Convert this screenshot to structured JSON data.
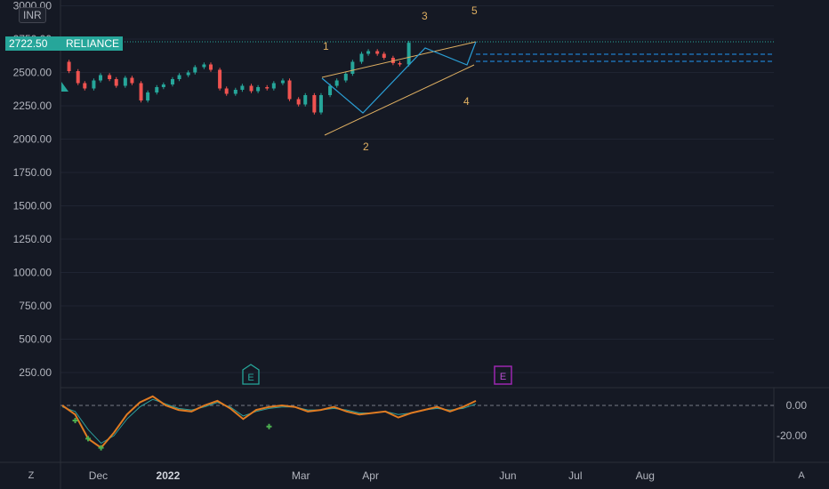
{
  "header": {
    "currency": "INR",
    "symbol": "RELIANCE",
    "last_price": "2722.50"
  },
  "price_axis": {
    "ticks": [
      "3000.00",
      "2750.00",
      "2500.00",
      "2250.00",
      "2000.00",
      "1750.00",
      "1500.00",
      "1250.00",
      "1000.00",
      "750.00",
      "500.00",
      "250.00"
    ]
  },
  "oscillator_axis": {
    "ticks": [
      "0.00",
      "-20.00"
    ]
  },
  "time_axis": {
    "labels": [
      "Dec",
      "2022",
      "Mar",
      "Apr",
      "Jun",
      "Jul",
      "Aug"
    ]
  },
  "buttons": {
    "zoom": "Z",
    "auto": "A"
  },
  "events": {
    "earnings_1": "E",
    "earnings_2": "E"
  },
  "wave_labels": [
    "1",
    "2",
    "3",
    "4",
    "5"
  ],
  "colors": {
    "up": "#26a69a",
    "down": "#ef5350",
    "pattern": "#e0b062",
    "oscillator_fast": "#e07b22",
    "oscillator_slow": "#2a9d9a",
    "earnings_1": "#26a69a",
    "earnings_2": "#9c27b0"
  },
  "chart_data": {
    "type": "candlestick",
    "symbol": "RELIANCE",
    "last_price": 2722.5,
    "y_range": [
      0,
      3000
    ],
    "close_series": [
      {
        "date": "2021-11-15",
        "close": 2580
      },
      {
        "date": "2021-11-18",
        "close": 2510
      },
      {
        "date": "2021-11-22",
        "close": 2420
      },
      {
        "date": "2021-11-25",
        "close": 2380
      },
      {
        "date": "2021-11-29",
        "close": 2440
      },
      {
        "date": "2021-12-02",
        "close": 2480
      },
      {
        "date": "2021-12-06",
        "close": 2450
      },
      {
        "date": "2021-12-09",
        "close": 2400
      },
      {
        "date": "2021-12-13",
        "close": 2460
      },
      {
        "date": "2021-12-16",
        "close": 2420
      },
      {
        "date": "2021-12-20",
        "close": 2290
      },
      {
        "date": "2021-12-23",
        "close": 2350
      },
      {
        "date": "2021-12-27",
        "close": 2390
      },
      {
        "date": "2021-12-30",
        "close": 2410
      },
      {
        "date": "2022-01-03",
        "close": 2450
      },
      {
        "date": "2022-01-06",
        "close": 2480
      },
      {
        "date": "2022-01-10",
        "close": 2500
      },
      {
        "date": "2022-01-13",
        "close": 2540
      },
      {
        "date": "2022-01-17",
        "close": 2560
      },
      {
        "date": "2022-01-20",
        "close": 2520
      },
      {
        "date": "2022-01-24",
        "close": 2380
      },
      {
        "date": "2022-01-27",
        "close": 2340
      },
      {
        "date": "2022-01-31",
        "close": 2370
      },
      {
        "date": "2022-02-03",
        "close": 2400
      },
      {
        "date": "2022-02-07",
        "close": 2360
      },
      {
        "date": "2022-02-10",
        "close": 2390
      },
      {
        "date": "2022-02-14",
        "close": 2380
      },
      {
        "date": "2022-02-17",
        "close": 2420
      },
      {
        "date": "2022-02-21",
        "close": 2440
      },
      {
        "date": "2022-02-24",
        "close": 2300
      },
      {
        "date": "2022-02-28",
        "close": 2260
      },
      {
        "date": "2022-03-03",
        "close": 2330
      },
      {
        "date": "2022-03-07",
        "close": 2200
      },
      {
        "date": "2022-03-10",
        "close": 2330
      },
      {
        "date": "2022-03-14",
        "close": 2400
      },
      {
        "date": "2022-03-17",
        "close": 2440
      },
      {
        "date": "2022-03-21",
        "close": 2490
      },
      {
        "date": "2022-03-24",
        "close": 2580
      },
      {
        "date": "2022-03-28",
        "close": 2640
      },
      {
        "date": "2022-03-31",
        "close": 2660
      },
      {
        "date": "2022-04-04",
        "close": 2640
      },
      {
        "date": "2022-04-07",
        "close": 2610
      },
      {
        "date": "2022-04-11",
        "close": 2570
      },
      {
        "date": "2022-04-14",
        "close": 2560
      },
      {
        "date": "2022-04-18",
        "close": 2722.5
      }
    ],
    "oscillator": {
      "levels": [
        0,
        -20
      ],
      "series": [
        {
          "values": [
            0,
            -6,
            -22,
            -28,
            -18,
            -6,
            2,
            6,
            0,
            -3,
            -4,
            0,
            3,
            -2,
            -9,
            -3,
            -1,
            0,
            -1,
            -4,
            -3,
            -1,
            -4,
            -6,
            -5,
            -4,
            -8,
            -5,
            -3,
            -1,
            -4,
            -1,
            3
          ]
        },
        {
          "values": [
            -1,
            -4,
            -16,
            -25,
            -20,
            -9,
            -1,
            4,
            1,
            -2,
            -3,
            -1,
            2,
            -1,
            -7,
            -4,
            -2,
            -1,
            -1,
            -3,
            -3,
            -2,
            -3,
            -5,
            -5,
            -4,
            -6,
            -5,
            -3,
            -2,
            -3,
            -2,
            1
          ]
        }
      ]
    }
  }
}
